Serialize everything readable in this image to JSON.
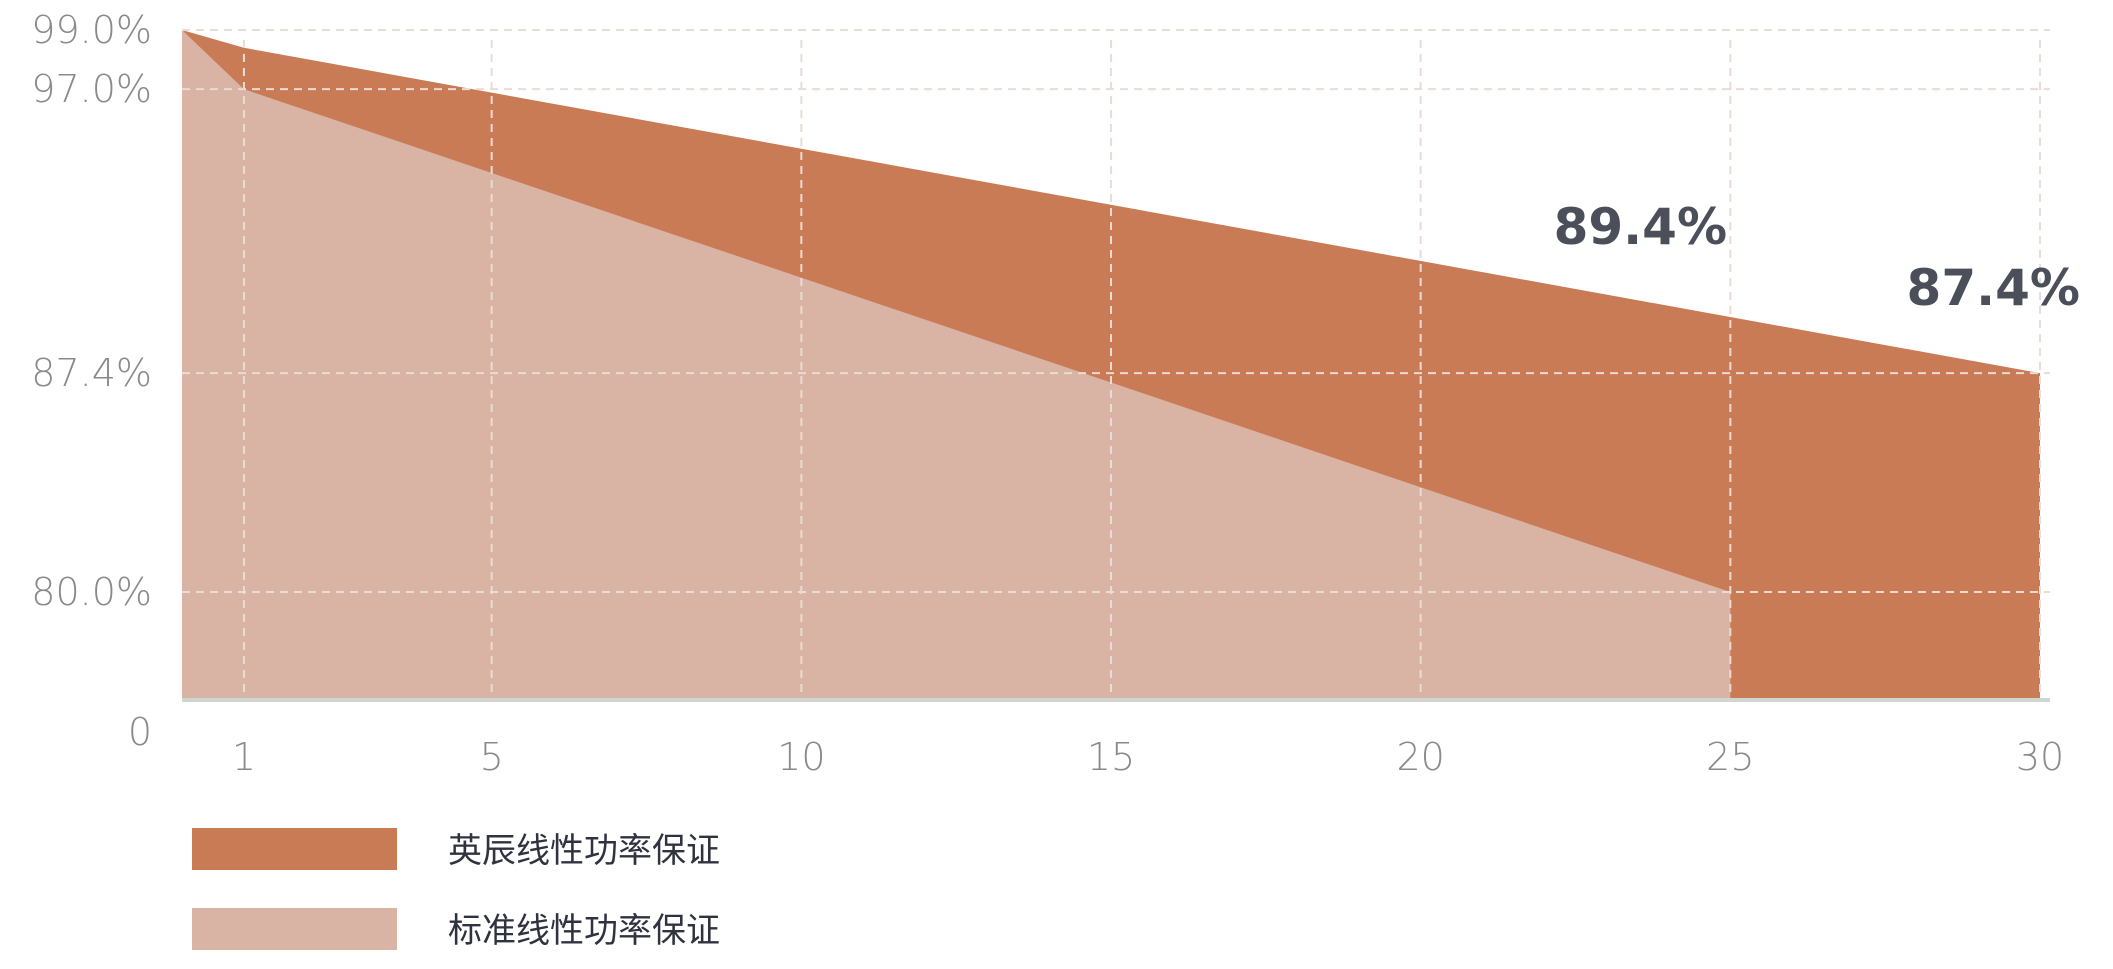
{
  "chart_data": {
    "type": "area",
    "x_ticks": [
      1,
      5,
      10,
      15,
      20,
      25,
      30
    ],
    "y_ticks": [
      {
        "value": 0,
        "label": "0"
      },
      {
        "value": 80.0,
        "label": "80.0%"
      },
      {
        "value": 87.4,
        "label": "87.4%"
      },
      {
        "value": 97.0,
        "label": "97.0%"
      },
      {
        "value": 99.0,
        "label": "99.0%"
      }
    ],
    "series": [
      {
        "name": "英辰线性功率保证",
        "color": "#c97b55",
        "points": [
          [
            0,
            99.0
          ],
          [
            1,
            98.4
          ],
          [
            30,
            87.4
          ]
        ]
      },
      {
        "name": "标准线性功率保证",
        "color": "#d9b3a3",
        "points": [
          [
            0,
            99.0
          ],
          [
            1,
            97.0
          ],
          [
            25,
            80.0
          ]
        ]
      }
    ],
    "annotations": [
      {
        "x": 25,
        "y": 89.4,
        "label": "89.4%"
      },
      {
        "x": 30,
        "y": 87.4,
        "label": "87.4%"
      }
    ],
    "grid": true
  }
}
